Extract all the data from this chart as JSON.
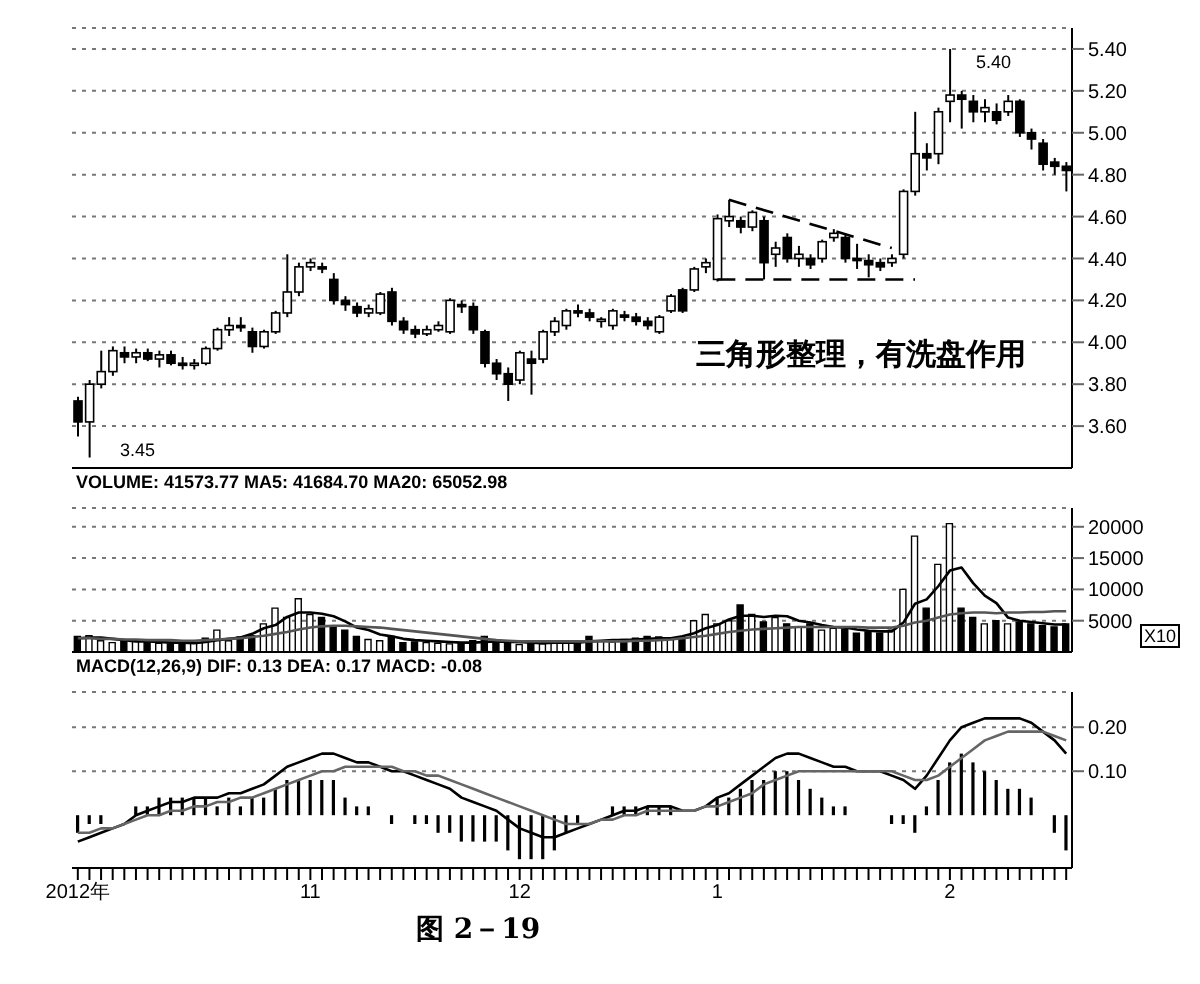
{
  "chart_data": [
    {
      "type": "candlestick",
      "tick_labels": "y",
      "grid": "y",
      "categories": [
        null,
        null,
        null,
        null,
        null,
        null,
        null,
        null,
        null,
        null,
        null,
        null,
        null,
        null,
        null,
        null,
        null,
        null,
        null,
        null,
        null,
        null,
        null,
        null,
        null,
        null,
        null,
        null,
        null,
        null,
        null,
        null,
        null,
        null,
        null,
        null,
        null,
        null,
        null,
        null,
        null,
        null,
        null,
        null,
        null,
        null,
        null,
        null,
        null,
        null,
        null,
        null,
        null,
        null,
        null,
        null,
        null,
        null,
        null,
        null,
        null,
        null,
        null,
        null,
        null,
        null,
        null,
        null,
        null,
        null,
        null,
        null,
        null,
        null,
        null,
        null,
        null,
        null,
        null,
        null,
        null,
        null,
        null,
        null,
        null,
        null
      ],
      "ohlc": [
        [
          3.72,
          3.74,
          3.55,
          3.62
        ],
        [
          3.62,
          3.82,
          3.45,
          3.8
        ],
        [
          3.8,
          3.96,
          3.78,
          3.86
        ],
        [
          3.86,
          3.98,
          3.84,
          3.96
        ],
        [
          3.95,
          3.98,
          3.9,
          3.93
        ],
        [
          3.93,
          3.97,
          3.9,
          3.95
        ],
        [
          3.95,
          3.97,
          3.91,
          3.92
        ],
        [
          3.92,
          3.96,
          3.88,
          3.94
        ],
        [
          3.94,
          3.96,
          3.89,
          3.9
        ],
        [
          3.9,
          3.93,
          3.87,
          3.89
        ],
        [
          3.89,
          3.92,
          3.87,
          3.9
        ],
        [
          3.9,
          3.98,
          3.89,
          3.97
        ],
        [
          3.97,
          4.07,
          3.96,
          4.06
        ],
        [
          4.06,
          4.12,
          4.03,
          4.08
        ],
        [
          4.08,
          4.12,
          4.05,
          4.07
        ],
        [
          4.05,
          4.07,
          3.95,
          3.98
        ],
        [
          3.98,
          4.06,
          3.97,
          4.05
        ],
        [
          4.05,
          4.15,
          4.04,
          4.14
        ],
        [
          4.14,
          4.42,
          4.12,
          4.24
        ],
        [
          4.24,
          4.38,
          4.22,
          4.36
        ],
        [
          4.36,
          4.4,
          4.34,
          4.38
        ],
        [
          4.36,
          4.38,
          4.33,
          4.35
        ],
        [
          4.3,
          4.33,
          4.18,
          4.2
        ],
        [
          4.2,
          4.22,
          4.15,
          4.18
        ],
        [
          4.17,
          4.19,
          4.12,
          4.14
        ],
        [
          4.14,
          4.18,
          4.12,
          4.16
        ],
        [
          4.14,
          4.24,
          4.13,
          4.23
        ],
        [
          4.24,
          4.26,
          4.08,
          4.1
        ],
        [
          4.1,
          4.12,
          4.04,
          4.06
        ],
        [
          4.06,
          4.08,
          4.02,
          4.04
        ],
        [
          4.04,
          4.08,
          4.03,
          4.06
        ],
        [
          4.06,
          4.1,
          4.05,
          4.08
        ],
        [
          4.05,
          4.21,
          4.04,
          4.2
        ],
        [
          4.18,
          4.2,
          4.14,
          4.17
        ],
        [
          4.17,
          4.19,
          4.04,
          4.06
        ],
        [
          4.05,
          4.06,
          3.88,
          3.9
        ],
        [
          3.9,
          3.92,
          3.82,
          3.85
        ],
        [
          3.85,
          3.88,
          3.72,
          3.8
        ],
        [
          3.82,
          3.96,
          3.8,
          3.95
        ],
        [
          3.92,
          3.96,
          3.75,
          3.9
        ],
        [
          3.92,
          4.06,
          3.9,
          4.05
        ],
        [
          4.05,
          4.12,
          4.03,
          4.1
        ],
        [
          4.08,
          4.16,
          4.06,
          4.15
        ],
        [
          4.15,
          4.18,
          4.12,
          4.14
        ],
        [
          4.14,
          4.16,
          4.1,
          4.12
        ],
        [
          4.1,
          4.12,
          4.07,
          4.11
        ],
        [
          4.08,
          4.16,
          4.06,
          4.15
        ],
        [
          4.13,
          4.15,
          4.1,
          4.12
        ],
        [
          4.12,
          4.14,
          4.08,
          4.1
        ],
        [
          4.1,
          4.12,
          4.06,
          4.08
        ],
        [
          4.05,
          4.13,
          4.04,
          4.12
        ],
        [
          4.15,
          4.23,
          4.14,
          4.22
        ],
        [
          4.25,
          4.26,
          4.14,
          4.15
        ],
        [
          4.25,
          4.36,
          4.24,
          4.35
        ],
        [
          4.36,
          4.4,
          4.33,
          4.38
        ],
        [
          4.3,
          4.61,
          4.29,
          4.59
        ],
        [
          4.58,
          4.68,
          4.55,
          4.6
        ],
        [
          4.58,
          4.6,
          4.52,
          4.55
        ],
        [
          4.55,
          4.63,
          4.53,
          4.62
        ],
        [
          4.58,
          4.6,
          4.3,
          4.38
        ],
        [
          4.42,
          4.48,
          4.36,
          4.45
        ],
        [
          4.5,
          4.52,
          4.38,
          4.4
        ],
        [
          4.4,
          4.46,
          4.36,
          4.42
        ],
        [
          4.4,
          4.42,
          4.35,
          4.37
        ],
        [
          4.4,
          4.49,
          4.38,
          4.48
        ],
        [
          4.5,
          4.54,
          4.48,
          4.52
        ],
        [
          4.5,
          4.52,
          4.38,
          4.4
        ],
        [
          4.4,
          4.47,
          4.35,
          4.39
        ],
        [
          4.39,
          4.42,
          4.31,
          4.37
        ],
        [
          4.38,
          4.4,
          4.34,
          4.36
        ],
        [
          4.38,
          4.42,
          4.36,
          4.4
        ],
        [
          4.42,
          4.73,
          4.4,
          4.72
        ],
        [
          4.72,
          5.1,
          4.7,
          4.9
        ],
        [
          4.9,
          4.95,
          4.82,
          4.88
        ],
        [
          4.9,
          5.12,
          4.85,
          5.1
        ],
        [
          5.15,
          5.4,
          5.05,
          5.18
        ],
        [
          5.18,
          5.2,
          5.02,
          5.16
        ],
        [
          5.15,
          5.18,
          5.05,
          5.1
        ],
        [
          5.1,
          5.16,
          5.05,
          5.12
        ],
        [
          5.1,
          5.14,
          5.04,
          5.06
        ],
        [
          5.1,
          5.18,
          5.08,
          5.15
        ],
        [
          5.15,
          5.16,
          4.98,
          5.0
        ],
        [
          5.0,
          5.02,
          4.92,
          4.97
        ],
        [
          4.95,
          4.97,
          4.82,
          4.85
        ],
        [
          4.86,
          4.88,
          4.8,
          4.84
        ],
        [
          4.84,
          4.86,
          4.72,
          4.82
        ]
      ],
      "series": [
        {
          "type": "line",
          "color": "#000000",
          "line_style": "dashed",
          "values": [
            null,
            null,
            null,
            null,
            null,
            null,
            null,
            null,
            null,
            null,
            null,
            null,
            null,
            null,
            null,
            null,
            null,
            null,
            null,
            null,
            null,
            null,
            null,
            null,
            null,
            null,
            null,
            null,
            null,
            null,
            null,
            null,
            null,
            null,
            null,
            null,
            null,
            null,
            null,
            null,
            null,
            null,
            null,
            null,
            null,
            null,
            null,
            null,
            null,
            null,
            null,
            null,
            null,
            null,
            null,
            null,
            4.68,
            null,
            null,
            null,
            null,
            null,
            null,
            null,
            null,
            null,
            null,
            null,
            null,
            null,
            4.45,
            null,
            null,
            null,
            null,
            null,
            null,
            null,
            null,
            null,
            null,
            null,
            null,
            null,
            null,
            null
          ]
        },
        {
          "type": "line",
          "color": "#000000",
          "line_style": "dashed",
          "values": [
            null,
            null,
            null,
            null,
            null,
            null,
            null,
            null,
            null,
            null,
            null,
            null,
            null,
            null,
            null,
            null,
            null,
            null,
            null,
            null,
            null,
            null,
            null,
            null,
            null,
            null,
            null,
            null,
            null,
            null,
            null,
            null,
            null,
            null,
            null,
            null,
            null,
            null,
            null,
            null,
            null,
            null,
            null,
            null,
            null,
            null,
            null,
            null,
            null,
            null,
            null,
            null,
            null,
            null,
            null,
            4.3,
            null,
            null,
            null,
            null,
            null,
            null,
            null,
            null,
            null,
            null,
            null,
            null,
            null,
            null,
            null,
            null,
            4.3,
            null,
            null,
            null,
            null,
            null,
            null,
            null,
            null,
            null,
            null,
            null,
            null,
            null
          ]
        }
      ],
      "ylim": [
        3.4,
        5.5
      ],
      "yticks": [
        {
          "value": 3.6,
          "label": "3.60"
        },
        {
          "value": 3.8,
          "label": "3.80"
        },
        {
          "value": 4.0,
          "label": "4.00"
        },
        {
          "value": 4.2,
          "label": "4.20"
        },
        {
          "value": 4.4,
          "label": "4.40"
        },
        {
          "value": 4.6,
          "label": "4.60"
        },
        {
          "value": 4.8,
          "label": "4.80"
        },
        {
          "value": 5.0,
          "label": "5.00"
        },
        {
          "value": 5.2,
          "label": "5.20"
        },
        {
          "value": 5.4,
          "label": "5.40"
        }
      ],
      "annotations": [
        "三角形整理，有洗盘作用",
        "3.45",
        "5.40"
      ]
    },
    {
      "type": "bar",
      "title": "VOLUME: 41573.77  MA5: 41684.70  MA20: 65052.98",
      "tick_labels": "y",
      "grid": "y",
      "categories": [
        null,
        null,
        null,
        null,
        null,
        null,
        null,
        null,
        null,
        null,
        null,
        null,
        null,
        null,
        null,
        null,
        null,
        null,
        null,
        null,
        null,
        null,
        null,
        null,
        null,
        null,
        null,
        null,
        null,
        null,
        null,
        null,
        null,
        null,
        null,
        null,
        null,
        null,
        null,
        null,
        null,
        null,
        null,
        null,
        null,
        null,
        null,
        null,
        null,
        null,
        null,
        null,
        null,
        null,
        null,
        null,
        null,
        null,
        null,
        null,
        null,
        null,
        null,
        null,
        null,
        null,
        null,
        null,
        null,
        null,
        null,
        null,
        null,
        null,
        null,
        null,
        null,
        null,
        null,
        null,
        null,
        null,
        null,
        null,
        null,
        null
      ],
      "series": [
        {
          "type": "bar",
          "values": [
            2500,
            2600,
            1800,
            1500,
            1900,
            1700,
            1500,
            1400,
            1300,
            1400,
            1500,
            2200,
            3500,
            1800,
            2400,
            2600,
            4500,
            7000,
            5500,
            8500,
            6000,
            5500,
            4000,
            3500,
            2500,
            2000,
            1800,
            2500,
            1500,
            1600,
            1500,
            1400,
            1300,
            1500,
            1800,
            2500,
            1600,
            1400,
            1200,
            1500,
            1300,
            1800,
            1600,
            1400,
            2500,
            1800,
            1600,
            2000,
            2200,
            2500,
            2400,
            2000,
            2300,
            5000,
            6000,
            4500,
            5000,
            7500,
            6000,
            4800,
            5500,
            4500,
            4000,
            4500,
            3500,
            3800,
            3600,
            3000,
            3200,
            3000,
            3500,
            10000,
            18500,
            7000,
            14000,
            20500,
            7000,
            5500,
            4500,
            5000,
            4500,
            4800,
            4500,
            4200,
            4000,
            4500
          ],
          "colors": [
            "#000000",
            "#ffffff",
            "#ffffff",
            "#ffffff",
            "#000000",
            "#ffffff",
            "#000000",
            "#ffffff",
            "#000000",
            "#000000",
            "#ffffff",
            "#ffffff",
            "#ffffff",
            "#ffffff",
            "#000000",
            "#000000",
            "#ffffff",
            "#ffffff",
            "#ffffff",
            "#ffffff",
            "#ffffff",
            "#000000",
            "#000000",
            "#000000",
            "#000000",
            "#ffffff",
            "#ffffff",
            "#000000",
            "#000000",
            "#000000",
            "#ffffff",
            "#ffffff",
            "#ffffff",
            "#000000",
            "#000000",
            "#000000",
            "#000000",
            "#000000",
            "#ffffff",
            "#000000",
            "#ffffff",
            "#ffffff",
            "#ffffff",
            "#000000",
            "#000000",
            "#ffffff",
            "#ffffff",
            "#000000",
            "#000000",
            "#000000",
            "#ffffff",
            "#ffffff",
            "#000000",
            "#ffffff",
            "#ffffff",
            "#ffffff",
            "#ffffff",
            "#000000",
            "#ffffff",
            "#000000",
            "#ffffff",
            "#000000",
            "#ffffff",
            "#000000",
            "#ffffff",
            "#ffffff",
            "#000000",
            "#000000",
            "#000000",
            "#000000",
            "#ffffff",
            "#ffffff",
            "#ffffff",
            "#000000",
            "#ffffff",
            "#ffffff",
            "#000000",
            "#000000",
            "#ffffff",
            "#000000",
            "#ffffff",
            "#000000",
            "#000000",
            "#000000",
            "#000000",
            "#000000"
          ]
        },
        {
          "type": "line",
          "color": "#000000",
          "values": [
            2200,
            2300,
            2300,
            2100,
            1900,
            1700,
            1700,
            1600,
            1500,
            1500,
            1400,
            1600,
            1900,
            2100,
            2300,
            2900,
            3800,
            4300,
            5600,
            6300,
            6300,
            6100,
            5700,
            4900,
            3900,
            3500,
            2800,
            2500,
            2100,
            1900,
            1800,
            1700,
            1600,
            1500,
            1500,
            1600,
            1700,
            1600,
            1600,
            1500,
            1400,
            1500,
            1500,
            1500,
            1700,
            1800,
            1900,
            1900,
            2000,
            2100,
            2200,
            2200,
            2500,
            3000,
            3800,
            4300,
            5200,
            5800,
            5800,
            5600,
            5800,
            5700,
            5000,
            4700,
            4300,
            4000,
            3900,
            3600,
            3400,
            3300,
            3300,
            4700,
            7700,
            8400,
            10500,
            13000,
            13500,
            11000,
            9000,
            7800,
            5500,
            5000,
            4800,
            4600,
            4400,
            4400
          ]
        },
        {
          "type": "line",
          "color": "#555555",
          "values": [
            2200,
            2200,
            2100,
            2100,
            2000,
            2000,
            1900,
            1900,
            1900,
            1800,
            1800,
            1900,
            2000,
            2100,
            2200,
            2400,
            2600,
            2900,
            3200,
            3600,
            3900,
            4100,
            4200,
            4200,
            4100,
            4000,
            3900,
            3700,
            3500,
            3300,
            3100,
            2900,
            2700,
            2500,
            2300,
            2100,
            1900,
            1800,
            1700,
            1700,
            1700,
            1700,
            1700,
            1700,
            1700,
            1700,
            1700,
            1700,
            1800,
            1800,
            1900,
            2000,
            2200,
            2400,
            2600,
            2900,
            3200,
            3400,
            3600,
            3700,
            3800,
            3900,
            4000,
            4000,
            4000,
            4000,
            4000,
            4000,
            3900,
            3900,
            3900,
            4200,
            4700,
            5000,
            5500,
            6000,
            6200,
            6300,
            6300,
            6200,
            6300,
            6300,
            6400,
            6400,
            6500,
            6500
          ]
        }
      ],
      "ylim": [
        0,
        23000
      ],
      "yticks": [
        5000,
        10000,
        15000,
        20000
      ],
      "annotations": [
        "X10"
      ]
    },
    {
      "type": "bar",
      "title": "MACD(12,26,9)  DIF: 0.13  DEA: 0.17  MACD: -0.08",
      "grid": "y",
      "categories": [
        "2012年",
        null,
        null,
        null,
        null,
        null,
        null,
        null,
        null,
        null,
        null,
        null,
        null,
        null,
        null,
        null,
        null,
        null,
        null,
        null,
        "11",
        null,
        null,
        null,
        null,
        null,
        null,
        null,
        null,
        null,
        null,
        null,
        null,
        null,
        null,
        null,
        null,
        null,
        "12",
        null,
        null,
        null,
        null,
        null,
        null,
        null,
        null,
        null,
        null,
        null,
        null,
        null,
        null,
        null,
        null,
        "1",
        null,
        null,
        null,
        null,
        null,
        null,
        null,
        null,
        null,
        null,
        null,
        null,
        null,
        null,
        null,
        null,
        null,
        null,
        null,
        "2",
        null,
        null,
        null,
        null,
        null,
        null,
        null,
        null,
        null,
        null
      ],
      "series": [
        {
          "type": "bar",
          "color": "#000000",
          "values": [
            -0.04,
            -0.02,
            -0.02,
            0.0,
            0.0,
            0.02,
            0.02,
            0.04,
            0.04,
            0.04,
            0.04,
            0.04,
            0.02,
            0.04,
            0.02,
            0.04,
            0.04,
            0.06,
            0.08,
            0.08,
            0.08,
            0.08,
            0.08,
            0.04,
            0.02,
            0.02,
            0.0,
            -0.02,
            0.0,
            -0.02,
            -0.02,
            -0.04,
            -0.04,
            -0.06,
            -0.06,
            -0.06,
            -0.06,
            -0.08,
            -0.1,
            -0.1,
            -0.1,
            -0.08,
            -0.04,
            -0.02,
            0.0,
            0.0,
            0.02,
            0.02,
            0.02,
            0.02,
            0.02,
            0.02,
            0.0,
            0.0,
            0.0,
            0.04,
            0.04,
            0.06,
            0.08,
            0.08,
            0.1,
            0.1,
            0.08,
            0.06,
            0.04,
            0.02,
            0.02,
            0.0,
            0.0,
            0.0,
            -0.02,
            -0.02,
            -0.04,
            0.02,
            0.08,
            0.12,
            0.14,
            0.12,
            0.1,
            0.08,
            0.06,
            0.06,
            0.04,
            0.0,
            -0.04,
            -0.08
          ]
        },
        {
          "type": "line",
          "color": "#000000",
          "values": [
            -0.06,
            -0.05,
            -0.04,
            -0.03,
            -0.02,
            0.0,
            0.01,
            0.02,
            0.03,
            0.03,
            0.04,
            0.04,
            0.04,
            0.05,
            0.05,
            0.06,
            0.07,
            0.09,
            0.11,
            0.12,
            0.13,
            0.14,
            0.14,
            0.13,
            0.12,
            0.12,
            0.11,
            0.1,
            0.1,
            0.09,
            0.08,
            0.07,
            0.06,
            0.04,
            0.03,
            0.02,
            0.01,
            -0.01,
            -0.03,
            -0.04,
            -0.05,
            -0.05,
            -0.04,
            -0.03,
            -0.02,
            -0.01,
            0.0,
            0.01,
            0.01,
            0.02,
            0.02,
            0.02,
            0.01,
            0.01,
            0.02,
            0.04,
            0.05,
            0.07,
            0.09,
            0.11,
            0.13,
            0.14,
            0.14,
            0.13,
            0.12,
            0.11,
            0.11,
            0.1,
            0.1,
            0.1,
            0.09,
            0.08,
            0.06,
            0.09,
            0.13,
            0.17,
            0.2,
            0.21,
            0.22,
            0.22,
            0.22,
            0.22,
            0.21,
            0.19,
            0.17,
            0.14
          ]
        },
        {
          "type": "line",
          "color": "#666666",
          "values": [
            -0.04,
            -0.04,
            -0.03,
            -0.03,
            -0.02,
            -0.01,
            0.0,
            0.0,
            0.01,
            0.01,
            0.02,
            0.02,
            0.03,
            0.03,
            0.04,
            0.04,
            0.05,
            0.06,
            0.07,
            0.08,
            0.09,
            0.1,
            0.1,
            0.11,
            0.11,
            0.11,
            0.11,
            0.11,
            0.1,
            0.1,
            0.09,
            0.09,
            0.08,
            0.07,
            0.06,
            0.05,
            0.04,
            0.03,
            0.02,
            0.01,
            0.0,
            -0.01,
            -0.02,
            -0.02,
            -0.02,
            -0.01,
            -0.01,
            0.0,
            0.0,
            0.01,
            0.01,
            0.01,
            0.01,
            0.01,
            0.02,
            0.02,
            0.03,
            0.04,
            0.05,
            0.07,
            0.08,
            0.09,
            0.1,
            0.1,
            0.1,
            0.1,
            0.1,
            0.1,
            0.1,
            0.1,
            0.1,
            0.09,
            0.08,
            0.08,
            0.09,
            0.11,
            0.13,
            0.15,
            0.17,
            0.18,
            0.19,
            0.19,
            0.19,
            0.19,
            0.18,
            0.17
          ]
        }
      ],
      "ylim": [
        -0.12,
        0.28
      ],
      "yticks": [
        {
          "value": 0.1,
          "label": "0.10"
        },
        {
          "value": 0.2,
          "label": "0.20"
        }
      ],
      "annotations": [
        "图 2－19"
      ]
    }
  ]
}
